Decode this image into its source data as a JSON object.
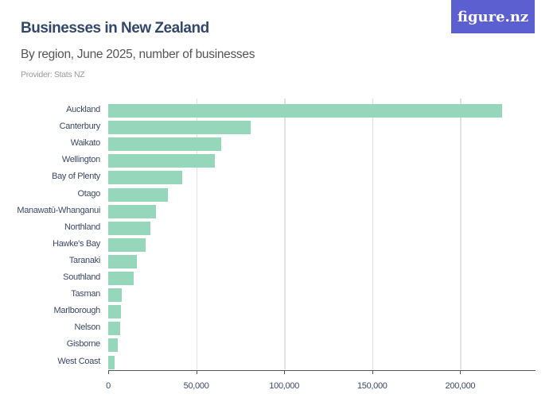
{
  "header": {
    "title": "Businesses in New Zealand",
    "subtitle": "By region, June 2025, number of businesses",
    "provider": "Provider: Stats NZ",
    "logo": "figure.nz"
  },
  "colors": {
    "bar": "#96d6bb",
    "title": "#34486b",
    "logo_bg": "#5b5fcf"
  },
  "chart_data": {
    "type": "bar",
    "orientation": "horizontal",
    "title": "Businesses in New Zealand",
    "subtitle": "By region, June 2025, number of businesses",
    "xlabel": "",
    "ylabel": "",
    "xlim": [
      0,
      240000
    ],
    "xticks": [
      0,
      50000,
      100000,
      150000,
      200000
    ],
    "xtick_labels": [
      "0",
      "50,000",
      "100,000",
      "150,000",
      "200,000"
    ],
    "grid": true,
    "categories": [
      "Auckland",
      "Canterbury",
      "Waikato",
      "Wellington",
      "Bay of Plenty",
      "Otago",
      "Manawatū-Whanganui",
      "Northland",
      "Hawke's Bay",
      "Taranaki",
      "Southland",
      "Tasman",
      "Marlborough",
      "Nelson",
      "Gisborne",
      "West Coast"
    ],
    "values": [
      223700,
      80900,
      64200,
      60500,
      42000,
      33900,
      27100,
      23900,
      21200,
      16300,
      14500,
      7700,
      7200,
      6800,
      5400,
      3600
    ]
  }
}
